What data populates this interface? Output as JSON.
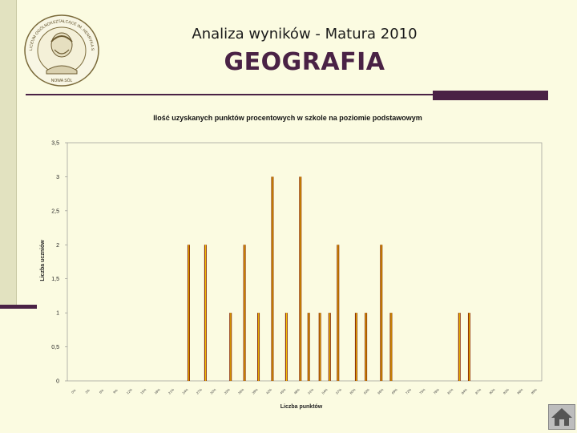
{
  "header": {
    "line1": "Analiza wyników - Matura 2010",
    "line2": "GEOGRAFIA"
  },
  "seal": {
    "text": "LICEUM OGÓLNOKSZTAŁCĄCE IM. HENRYKA SIENKIEWICZA",
    "bottom": "NOWA SÓL"
  },
  "colors": {
    "background": "#fbfbe1",
    "accent": "#4a2245",
    "bar": "#8b2e06",
    "bar_highlight": "#f5c200"
  },
  "icons": {
    "nav": "home-icon"
  },
  "chart_data": {
    "type": "bar",
    "title": "Ilość uzyskanych punktów procentowych w szkole na poziomie podstawowym",
    "xlabel": "Liczba punktów",
    "ylabel": "Liczba uczniów",
    "ylim": [
      0,
      3.5
    ],
    "yticks": [
      "0",
      "0,5",
      "1",
      "1,5",
      "2",
      "2,5",
      "3",
      "3,5"
    ],
    "grid": false,
    "legend": "none",
    "categories": [
      "0%",
      "3%",
      "6%",
      "9%",
      "12%",
      "15%",
      "18%",
      "21%",
      "24%",
      "27%",
      "30%",
      "33%",
      "36%",
      "39%",
      "42%",
      "45%",
      "48%",
      "51%",
      "54%",
      "57%",
      "60%",
      "63%",
      "66%",
      "69%",
      "72%",
      "75%",
      "78%",
      "81%",
      "84%",
      "87%",
      "90%",
      "93%",
      "96%",
      "99%"
    ],
    "bars": [
      {
        "x": 8.2,
        "value": 2
      },
      {
        "x": 9.4,
        "value": 2
      },
      {
        "x": 11.2,
        "value": 1
      },
      {
        "x": 12.2,
        "value": 2
      },
      {
        "x": 13.2,
        "value": 1
      },
      {
        "x": 14.2,
        "value": 3
      },
      {
        "x": 15.2,
        "value": 1
      },
      {
        "x": 16.2,
        "value": 3
      },
      {
        "x": 16.8,
        "value": 1
      },
      {
        "x": 17.6,
        "value": 1
      },
      {
        "x": 18.3,
        "value": 1
      },
      {
        "x": 18.9,
        "value": 2
      },
      {
        "x": 20.2,
        "value": 1
      },
      {
        "x": 20.9,
        "value": 1
      },
      {
        "x": 22.0,
        "value": 2
      },
      {
        "x": 22.7,
        "value": 1
      },
      {
        "x": 27.6,
        "value": 1
      },
      {
        "x": 28.3,
        "value": 1
      }
    ]
  }
}
